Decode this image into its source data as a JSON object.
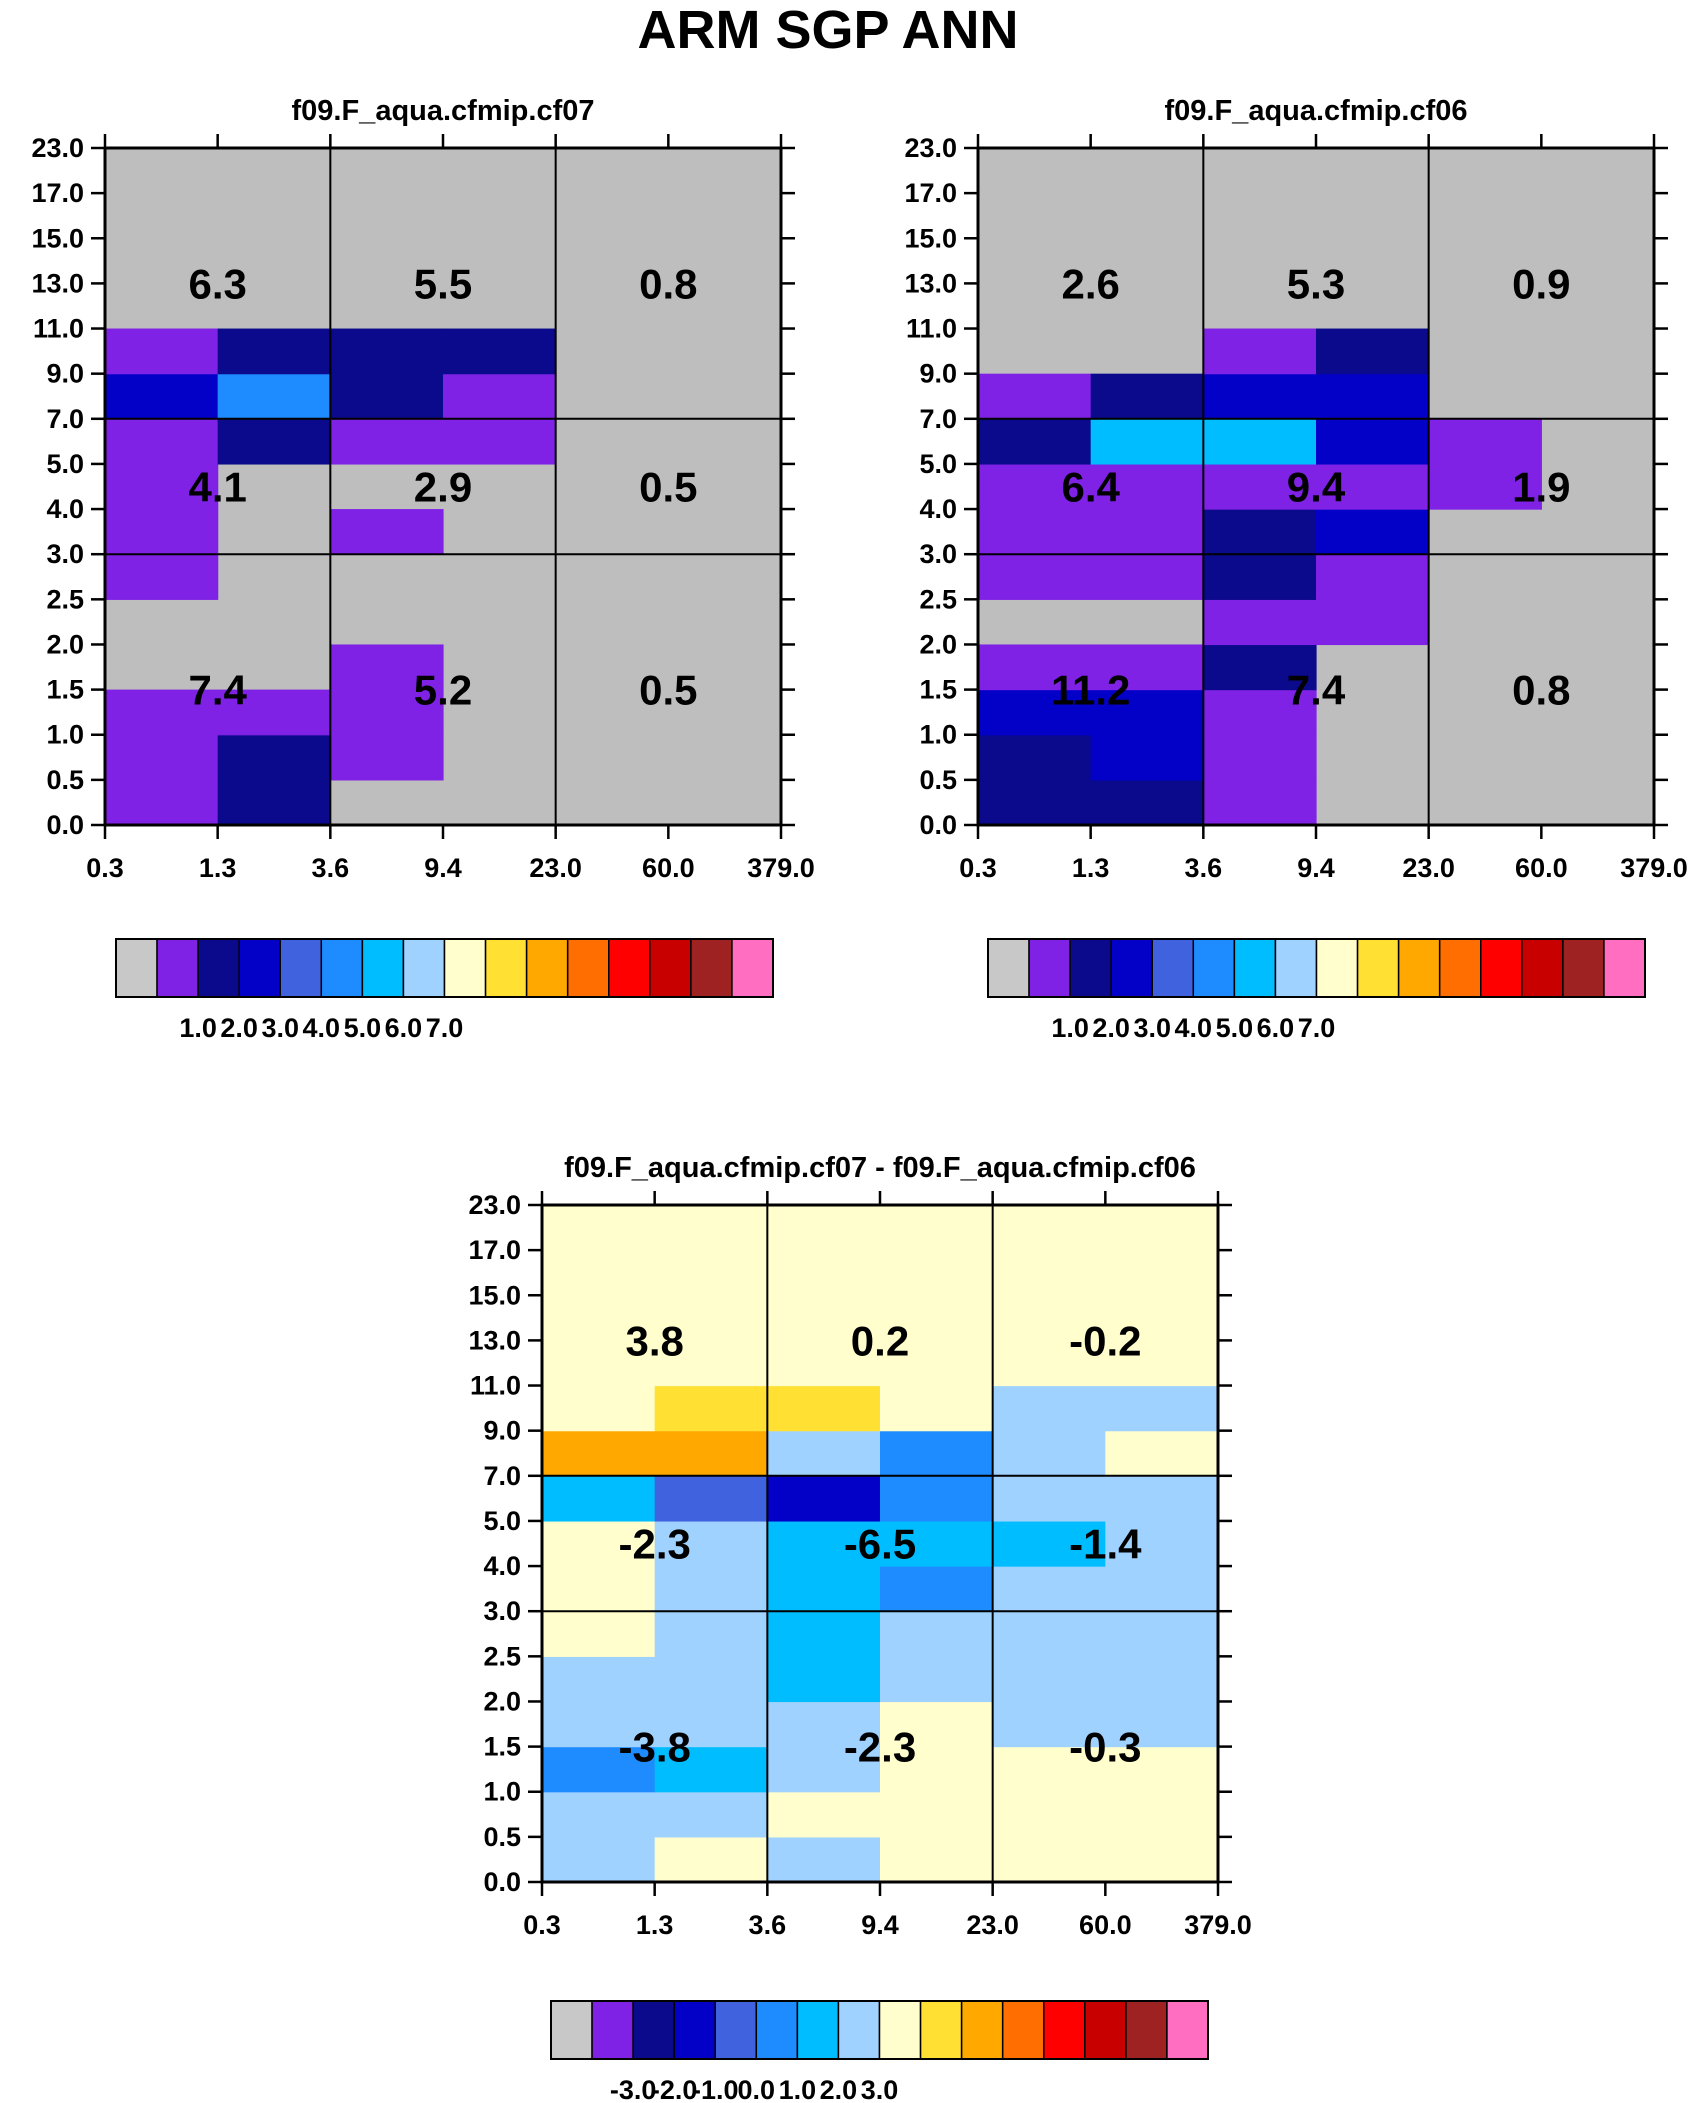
{
  "page_title": "ARM SGP ANN",
  "colors": {
    "abs_scale": [
      "#c8c8c8",
      "#7f22e6",
      "#0b0a8c",
      "#0300c8",
      "#4062de",
      "#1e8cff",
      "#00bdff",
      "#a0d2ff",
      "#fffecc",
      "#ffe033",
      "#ffa800",
      "#ff6e00",
      "#ff0000",
      "#c80000",
      "#9e2222",
      "#ff6ec0"
    ],
    "diff_scale": [
      "#c8c8c8",
      "#7f22e6",
      "#0b0a8c",
      "#0300c8",
      "#4062de",
      "#1e8cff",
      "#00bdff",
      "#a0d2ff",
      "#fffecc",
      "#ffe033",
      "#ffa800",
      "#ff6e00",
      "#ff0000",
      "#c80000",
      "#9e2222",
      "#ff6ec0"
    ],
    "missing": "#bebebe",
    "grid": "#000000"
  },
  "chart_data": [
    {
      "type": "heatmap",
      "title": "f09.F_aqua.cfmip.cf07",
      "x_ticks": [
        "0.3",
        "1.3",
        "3.6",
        "9.4",
        "23.0",
        "60.0",
        "379.0"
      ],
      "y_ticks": [
        "0.0",
        "0.5",
        "1.0",
        "1.5",
        "2.0",
        "2.5",
        "3.0",
        "4.0",
        "5.0",
        "7.0",
        "9.0",
        "11.0",
        "13.0",
        "15.0",
        "17.0",
        "23.0"
      ],
      "levels": [
        1.0,
        2.0,
        3.0,
        4.0,
        5.0,
        6.0,
        7.0
      ],
      "colorbar_labels": [
        "1.0",
        "2.0",
        "3.0",
        "4.0",
        "5.0",
        "6.0",
        "7.0"
      ],
      "grid_x_bins": [
        0,
        2,
        4,
        6
      ],
      "grid_y_bins": [
        0,
        6,
        9,
        15
      ],
      "cells": [
        [
          1,
          2,
          0,
          0,
          0,
          0
        ],
        [
          1,
          2,
          1,
          0,
          0,
          0
        ],
        [
          1,
          1,
          1,
          0,
          0,
          0
        ],
        [
          0,
          0,
          1,
          0,
          0,
          0
        ],
        [
          0,
          0,
          0,
          0,
          0,
          0
        ],
        [
          1,
          0,
          0,
          0,
          0,
          0
        ],
        [
          1,
          0,
          1,
          0,
          0,
          0
        ],
        [
          1,
          0,
          0,
          0,
          0,
          0
        ],
        [
          1,
          2,
          1,
          1,
          0,
          0
        ],
        [
          3,
          5,
          2,
          1,
          0,
          0
        ],
        [
          1,
          2,
          2,
          2,
          0,
          0
        ],
        [
          0,
          0,
          0,
          0,
          0,
          0
        ],
        [
          0,
          0,
          0,
          0,
          0,
          0
        ],
        [
          0,
          0,
          0,
          0,
          0,
          0
        ],
        [
          0,
          0,
          0,
          0,
          0,
          0
        ]
      ],
      "box_values": [
        [
          "7.4",
          "5.2",
          "0.5"
        ],
        [
          "4.1",
          "2.9",
          "0.5"
        ],
        [
          "6.3",
          "5.5",
          "0.8"
        ]
      ]
    },
    {
      "type": "heatmap",
      "title": "f09.F_aqua.cfmip.cf06",
      "x_ticks": [
        "0.3",
        "1.3",
        "3.6",
        "9.4",
        "23.0",
        "60.0",
        "379.0"
      ],
      "y_ticks": [
        "0.0",
        "0.5",
        "1.0",
        "1.5",
        "2.0",
        "2.5",
        "3.0",
        "4.0",
        "5.0",
        "7.0",
        "9.0",
        "11.0",
        "13.0",
        "15.0",
        "17.0",
        "23.0"
      ],
      "levels": [
        1.0,
        2.0,
        3.0,
        4.0,
        5.0,
        6.0,
        7.0
      ],
      "colorbar_labels": [
        "1.0",
        "2.0",
        "3.0",
        "4.0",
        "5.0",
        "6.0",
        "7.0"
      ],
      "grid_x_bins": [
        0,
        2,
        4,
        6
      ],
      "grid_y_bins": [
        0,
        6,
        9,
        15
      ],
      "cells": [
        [
          2,
          2,
          1,
          0,
          0,
          0
        ],
        [
          2,
          3,
          1,
          0,
          0,
          0
        ],
        [
          3,
          3,
          1,
          0,
          0,
          0
        ],
        [
          1,
          1,
          2,
          0,
          0,
          0
        ],
        [
          0,
          0,
          1,
          1,
          0,
          0
        ],
        [
          1,
          1,
          2,
          1,
          0,
          0
        ],
        [
          1,
          1,
          2,
          3,
          0,
          0
        ],
        [
          1,
          1,
          1,
          1,
          1,
          0
        ],
        [
          2,
          6,
          6,
          3,
          1,
          0
        ],
        [
          1,
          2,
          3,
          3,
          0,
          0
        ],
        [
          0,
          0,
          1,
          2,
          0,
          0
        ],
        [
          0,
          0,
          0,
          0,
          0,
          0
        ],
        [
          0,
          0,
          0,
          0,
          0,
          0
        ],
        [
          0,
          0,
          0,
          0,
          0,
          0
        ],
        [
          0,
          0,
          0,
          0,
          0,
          0
        ]
      ],
      "box_values": [
        [
          "11.2",
          "7.4",
          "0.8"
        ],
        [
          "6.4",
          "9.4",
          "1.9"
        ],
        [
          "2.6",
          "5.3",
          "0.9"
        ]
      ]
    },
    {
      "type": "heatmap",
      "title": "f09.F_aqua.cfmip.cf07 - f09.F_aqua.cfmip.cf06",
      "x_ticks": [
        "0.3",
        "1.3",
        "3.6",
        "9.4",
        "23.0",
        "60.0",
        "379.0"
      ],
      "y_ticks": [
        "0.0",
        "0.5",
        "1.0",
        "1.5",
        "2.0",
        "2.5",
        "3.0",
        "4.0",
        "5.0",
        "7.0",
        "9.0",
        "11.0",
        "13.0",
        "15.0",
        "17.0",
        "23.0"
      ],
      "levels": [
        -3.0,
        -2.0,
        -1.0,
        0.0,
        1.0,
        2.0,
        3.0
      ],
      "colorbar_labels": [
        "-3.0",
        "-2.0",
        "-1.0",
        "0.0",
        "1.0",
        "2.0",
        "3.0"
      ],
      "grid_x_bins": [
        0,
        2,
        4,
        6
      ],
      "grid_y_bins": [
        0,
        6,
        9,
        15
      ],
      "cells": [
        [
          7,
          8,
          7,
          8,
          8,
          8
        ],
        [
          7,
          7,
          8,
          8,
          8,
          8
        ],
        [
          5,
          6,
          7,
          8,
          8,
          8
        ],
        [
          7,
          7,
          7,
          8,
          7,
          7
        ],
        [
          7,
          7,
          6,
          7,
          7,
          7
        ],
        [
          8,
          7,
          6,
          7,
          7,
          7
        ],
        [
          8,
          7,
          6,
          5,
          7,
          7
        ],
        [
          8,
          7,
          6,
          6,
          6,
          7
        ],
        [
          6,
          4,
          3,
          5,
          7,
          7
        ],
        [
          10,
          10,
          7,
          5,
          7,
          8
        ],
        [
          8,
          9,
          9,
          8,
          7,
          7
        ],
        [
          8,
          8,
          8,
          8,
          8,
          8
        ],
        [
          8,
          8,
          8,
          8,
          8,
          8
        ],
        [
          8,
          8,
          8,
          8,
          8,
          8
        ],
        [
          8,
          8,
          8,
          8,
          8,
          8
        ]
      ],
      "box_values": [
        [
          "-3.8",
          "-2.3",
          "-0.3"
        ],
        [
          "-2.3",
          "-6.5",
          "-1.4"
        ],
        [
          "3.8",
          "0.2",
          "-0.2"
        ]
      ]
    }
  ]
}
